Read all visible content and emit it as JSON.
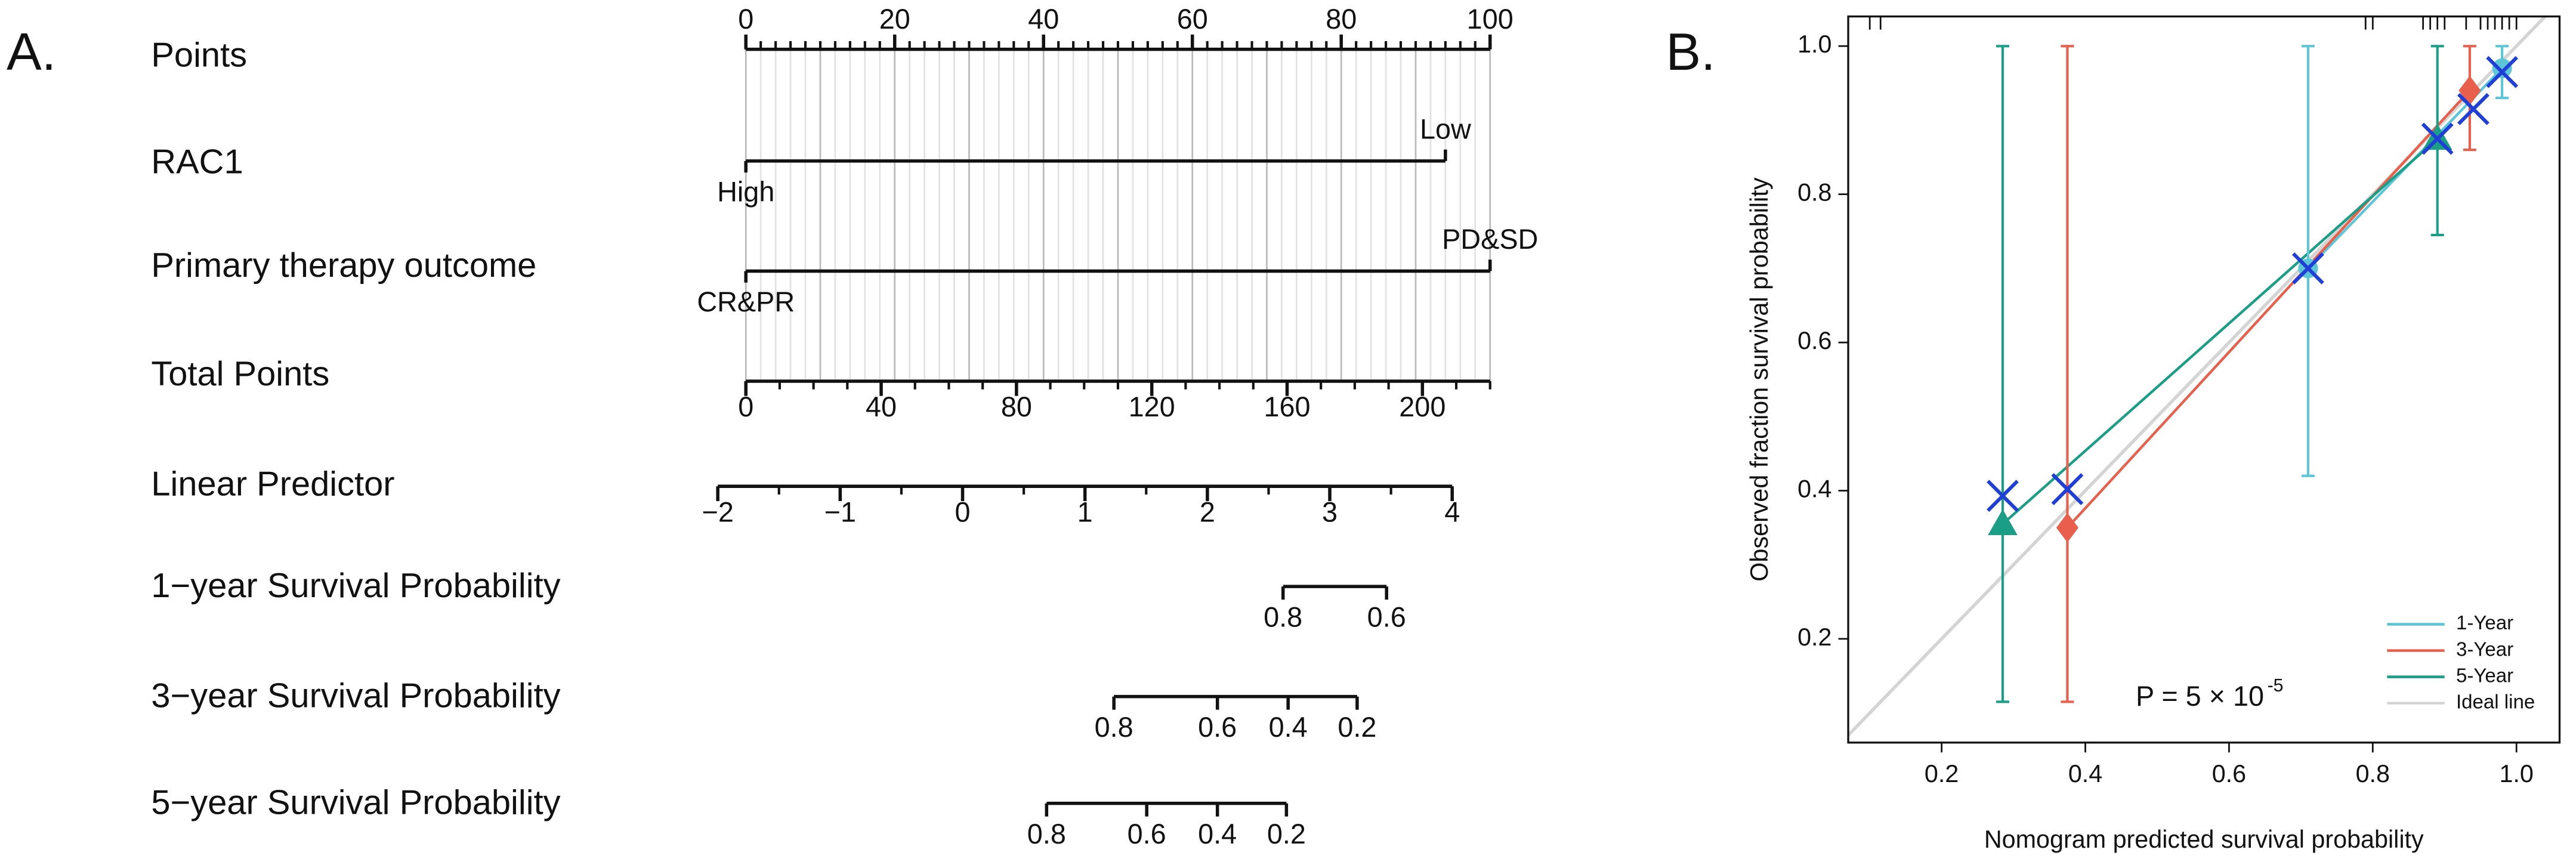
{
  "chart_data": [
    {
      "type": "nomogram",
      "panel_label": "A.",
      "rows": [
        {
          "label": "Points",
          "lim": [
            0,
            100
          ],
          "ticks": [
            0,
            20,
            40,
            60,
            80,
            100
          ],
          "minor_ticks": [
            0,
            2,
            4,
            6,
            8,
            10,
            12,
            14,
            16,
            18,
            20,
            22,
            24,
            26,
            28,
            30,
            32,
            34,
            36,
            38,
            40,
            42,
            44,
            46,
            48,
            50,
            52,
            54,
            56,
            58,
            60,
            62,
            64,
            66,
            68,
            70,
            72,
            74,
            76,
            78,
            80,
            82,
            84,
            86,
            88,
            90,
            92,
            94,
            96,
            98,
            100
          ]
        },
        {
          "label": "RAC1",
          "levels": [
            {
              "label": "High",
              "points": 0
            },
            {
              "label": "Low",
              "points": 94
            }
          ]
        },
        {
          "label": "Primary therapy outcome",
          "levels": [
            {
              "label": "CR&PR",
              "points": 0
            },
            {
              "label": "PD&SD",
              "points": 100
            }
          ]
        },
        {
          "label": "Total Points",
          "lim": [
            0,
            220
          ],
          "ticks": [
            0,
            40,
            80,
            120,
            160,
            200
          ],
          "minor_ticks": [
            0,
            10,
            20,
            30,
            40,
            50,
            60,
            70,
            80,
            90,
            100,
            110,
            120,
            130,
            140,
            150,
            160,
            170,
            180,
            190,
            200,
            210,
            220
          ]
        },
        {
          "label": "Linear Predictor",
          "lim": [
            -2,
            4
          ],
          "lim_total_points": [
            -8.3,
            208.8
          ],
          "ticks": [
            {
              "value": -2,
              "label": "−2"
            },
            {
              "value": -1,
              "label": "−1"
            },
            0,
            1,
            2,
            3,
            4
          ],
          "minor_ticks": [
            -1.5,
            -0.5,
            0.5,
            1.5,
            2.5,
            3.5
          ]
        },
        {
          "label": "1−year Survival Probability",
          "ticks": [
            0.8,
            0.6
          ],
          "tick_total_points": [
            158.8,
            189.4
          ]
        },
        {
          "label": "3−year Survival Probability",
          "ticks": [
            0.8,
            0.6,
            0.4,
            0.2
          ],
          "tick_total_points": [
            108.8,
            139.4,
            160.3,
            180.7
          ]
        },
        {
          "label": "5−year Survival Probability",
          "ticks": [
            0.8,
            0.6,
            0.4,
            0.2
          ],
          "tick_total_points": [
            88.9,
            118.5,
            139.4,
            159.8
          ]
        }
      ]
    },
    {
      "type": "calibration",
      "panel_label": "B.",
      "xlabel": "Nomogram predicted survival probability",
      "ylabel": "Observed fraction survival probability",
      "xlim": [
        0.07,
        1.06
      ],
      "ylim": [
        0.06,
        1.04
      ],
      "xticks": [
        0.2,
        0.4,
        0.6,
        0.8,
        {
          "value": 1,
          "label": "1.0"
        }
      ],
      "yticks": [
        0.2,
        0.4,
        0.6,
        0.8,
        {
          "value": 1,
          "label": "1.0"
        }
      ],
      "series": [
        {
          "name": "1-Year",
          "color": "#5cc6d6",
          "marker": "circle",
          "x": [
            0.71,
            0.98
          ],
          "y": [
            0.7,
            0.97
          ],
          "ci_low": [
            0.42,
            0.93
          ],
          "ci_high": [
            1.0,
            1.0
          ]
        },
        {
          "name": "3-Year",
          "color": "#e8604c",
          "marker": "diamond",
          "x": [
            0.375,
            0.935
          ],
          "y": [
            0.35,
            0.94
          ],
          "ci_low": [
            0.115,
            0.86
          ],
          "ci_high": [
            1.0,
            1.0
          ]
        },
        {
          "name": "5-Year",
          "color": "#1a9e86",
          "marker": "triangle",
          "x": [
            0.285,
            0.89
          ],
          "y": [
            0.355,
            0.875
          ],
          "ci_low": [
            0.115,
            0.745
          ],
          "ci_high": [
            1.0,
            1.0
          ]
        }
      ],
      "markers": {
        "color": "#1f3fd6",
        "x": [
          0.285,
          0.375,
          0.71,
          0.89,
          0.94,
          0.98
        ],
        "y": [
          0.393,
          0.402,
          0.7,
          0.875,
          0.915,
          0.965
        ]
      },
      "ideal_line": {
        "name": "Ideal line",
        "color": "#d4d4d4"
      },
      "rug": [
        0.1,
        0.115,
        0.79,
        0.8,
        0.87,
        0.88,
        0.89,
        0.9,
        0.93,
        0.95,
        0.96,
        0.97,
        0.98,
        0.99,
        1.0
      ],
      "annotation": {
        "text": "P = 5 × 10",
        "superscript": "-5"
      },
      "legend": "lower right"
    }
  ]
}
